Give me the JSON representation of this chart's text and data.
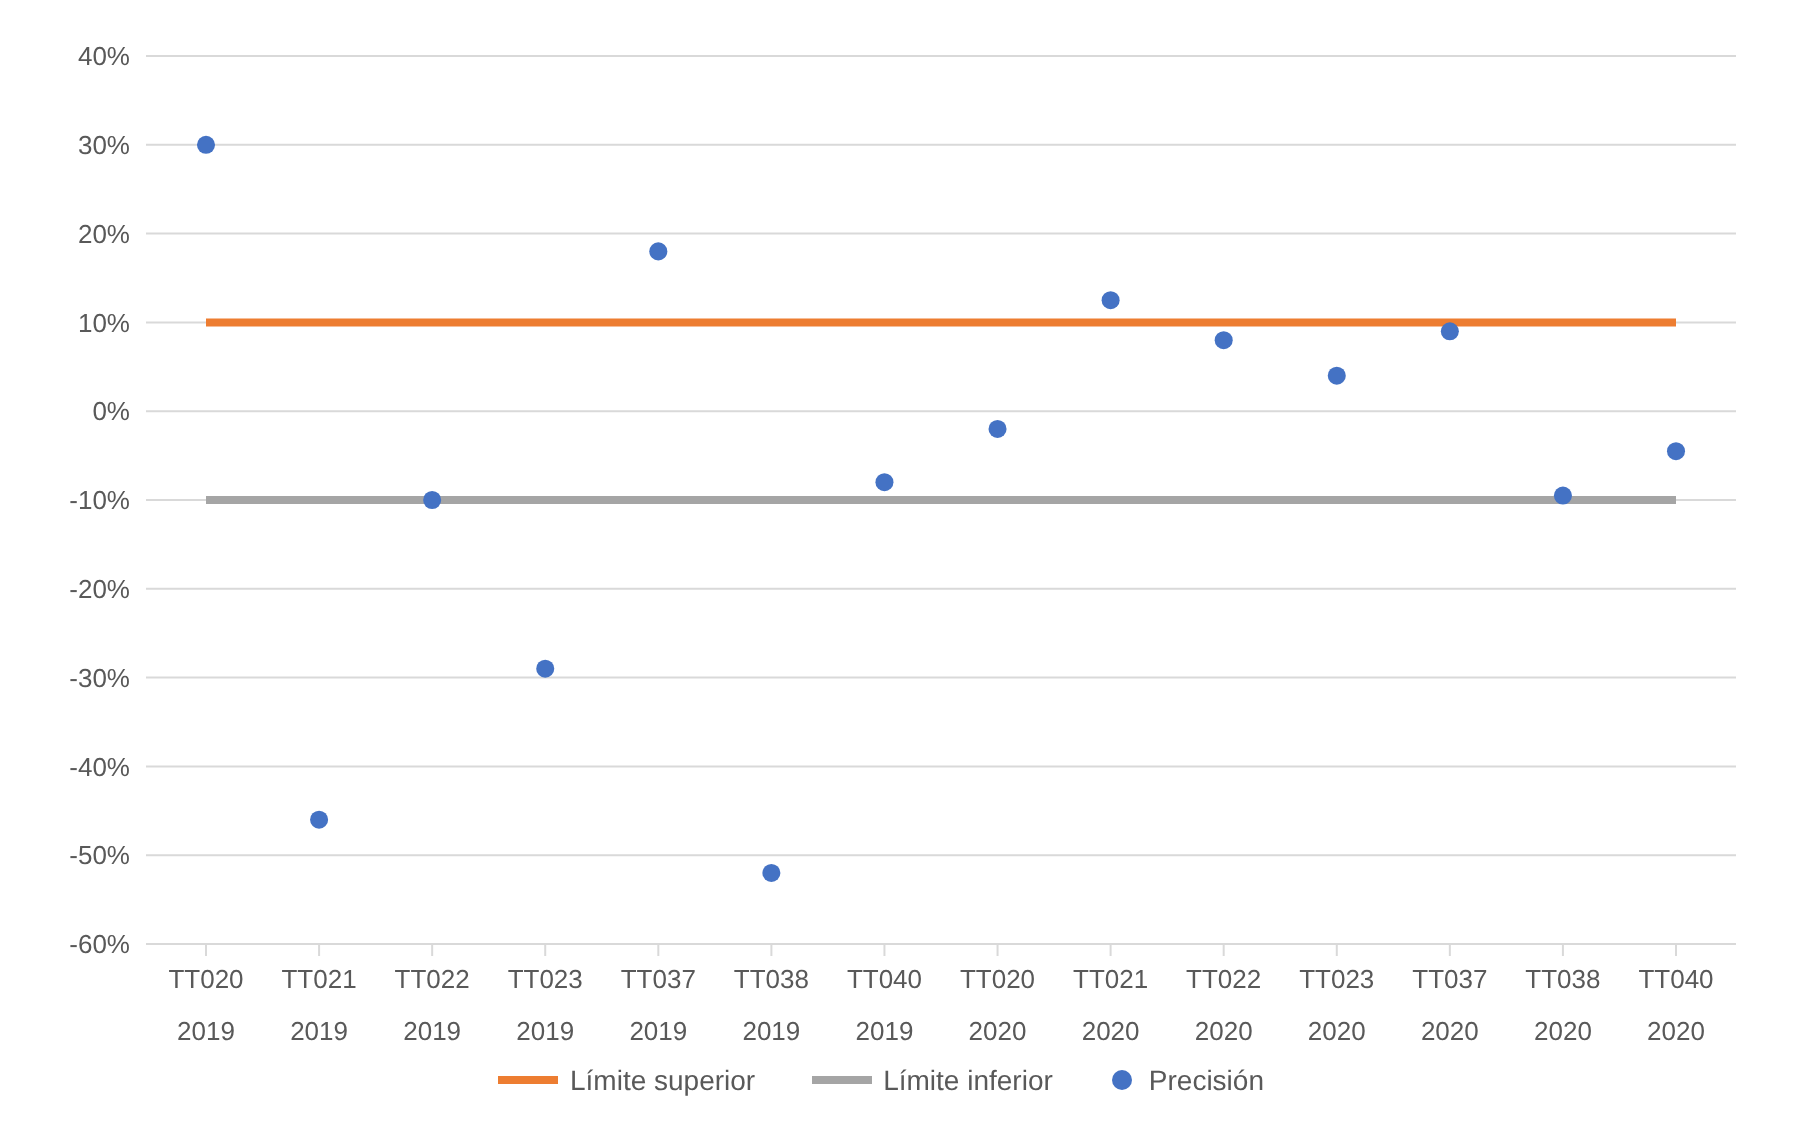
{
  "chart_data": {
    "type": "scatter",
    "categories": [
      "TT020 2019",
      "TT021 2019",
      "TT022 2019",
      "TT023 2019",
      "TT037 2019",
      "TT038 2019",
      "TT040 2019",
      "TT020 2020",
      "TT021 2020",
      "TT022 2020",
      "TT023 2020",
      "TT037 2020",
      "TT038 2020",
      "TT040 2020"
    ],
    "series": [
      {
        "name": "Límite superior",
        "type": "line",
        "color": "#ed7d31",
        "marker": "none",
        "values": [
          10,
          10,
          10,
          10,
          10,
          10,
          10,
          10,
          10,
          10,
          10,
          10,
          10,
          10
        ]
      },
      {
        "name": "Límite inferior",
        "type": "line",
        "color": "#a5a5a5",
        "marker": "none",
        "values": [
          -10,
          -10,
          -10,
          -10,
          -10,
          -10,
          -10,
          -10,
          -10,
          -10,
          -10,
          -10,
          -10,
          -10
        ]
      },
      {
        "name": "Precisión",
        "color": "#4472c4",
        "marker": "circle",
        "values": [
          30,
          -46,
          -10,
          -29,
          18,
          -52,
          -8,
          -2,
          12.5,
          8,
          4,
          9,
          -9.5,
          -4.5
        ]
      }
    ],
    "ylim": [
      -60,
      40
    ],
    "yticks": [
      {
        "value": -60,
        "label": "-60%"
      },
      {
        "value": -50,
        "label": "-50%"
      },
      {
        "value": -40,
        "label": "-40%"
      },
      {
        "value": -30,
        "label": "-30%"
      },
      {
        "value": -20,
        "label": "-20%"
      },
      {
        "value": -10,
        "label": "-10%"
      },
      {
        "value": 0,
        "label": "0%"
      },
      {
        "value": 10,
        "label": "10%"
      },
      {
        "value": 20,
        "label": "20%"
      },
      {
        "value": 30,
        "label": "30%"
      },
      {
        "value": 40,
        "label": "40%"
      }
    ],
    "grid": "y",
    "legend": "bottom"
  }
}
